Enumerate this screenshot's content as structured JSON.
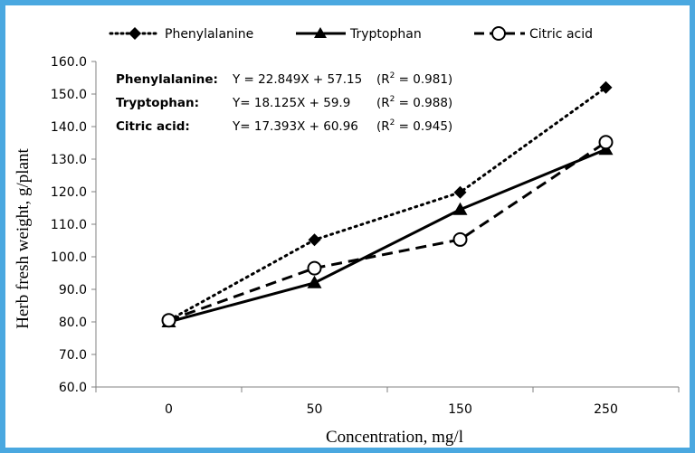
{
  "colors": {
    "border": "#4aa8e0",
    "series": "#000000",
    "axis": "#808080",
    "background": "#ffffff"
  },
  "chart_data": {
    "type": "line",
    "xlabel": "Concentration, mg/l",
    "ylabel": "Herb fresh weight, g/plant",
    "categories": [
      "0",
      "50",
      "150",
      "250"
    ],
    "ylim": [
      60.0,
      160.0
    ],
    "ytick_labels": [
      "60.0",
      "70.0",
      "80.0",
      "90.0",
      "100.0",
      "110.0",
      "120.0",
      "130.0",
      "140.0",
      "150.0",
      "160.0"
    ],
    "grid": false,
    "legend_position": "top",
    "series": [
      {
        "name": "Phenylalanine",
        "values": [
          80.5,
          105.2,
          119.8,
          152.0
        ],
        "line_style": "dotted",
        "marker": "diamond"
      },
      {
        "name": "Tryptophan",
        "values": [
          80.0,
          92.0,
          114.5,
          133.0
        ],
        "line_style": "solid",
        "marker": "triangle"
      },
      {
        "name": "Citric acid",
        "values": [
          80.5,
          96.5,
          105.3,
          135.2
        ],
        "line_style": "dashed",
        "marker": "open-circle"
      }
    ],
    "equations": [
      {
        "name": "Phenylalanine:",
        "formula": "Y = 22.849X + 57.15",
        "r2_prefix": "(R",
        "r2_sup": "2",
        "r2_value": " = 0.981)"
      },
      {
        "name": "Tryptophan:",
        "formula": "Y= 18.125X + 59.9",
        "r2_prefix": "(R",
        "r2_sup": "2",
        "r2_value": " = 0.988)"
      },
      {
        "name": "Citric acid:",
        "formula": "Y= 17.393X + 60.96",
        "r2_prefix": "(R",
        "r2_sup": "2",
        "r2_value": " = 0.945)"
      }
    ]
  }
}
